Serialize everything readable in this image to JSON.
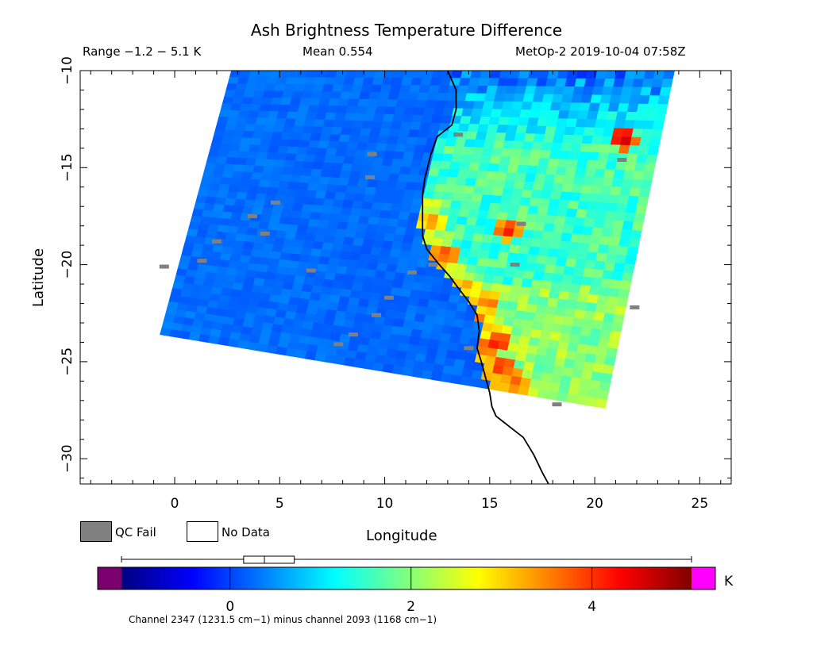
{
  "header": {
    "title": "Ash Brightness Temperature Difference",
    "range": "Range −1.2 − 5.1 K",
    "mean": "Mean 0.554",
    "source": "MetOp-2 2019-10-04 07:58Z"
  },
  "legend": {
    "qc_fail_label": "QC Fail",
    "no_data_label": "No Data",
    "qc_fail_color": "#808080",
    "no_data_color": "#ffffff"
  },
  "colorbar": {
    "unit": "K",
    "ticks": [
      0,
      2,
      4
    ],
    "tick_labels": [
      "0",
      "2",
      "4"
    ],
    "range": [
      -1.2,
      5.1
    ],
    "under_color": "#7a006e",
    "over_color": "#ff00ff",
    "box_stats": {
      "whisker_low": -1.2,
      "q1": 0.15,
      "median": 0.38,
      "q3": 0.71,
      "whisker_high": 5.1
    },
    "footnote": "Channel 2347 (1231.5 cm−1) minus channel 2093 (1168 cm−1)"
  },
  "chart_data": {
    "type": "heatmap",
    "title": "Ash Brightness Temperature Difference",
    "xlabel": "Longitude",
    "ylabel": "Latitude",
    "xlim": [
      -4.5,
      26.5
    ],
    "ylim": [
      -31.3,
      -10
    ],
    "x_ticks": [
      0,
      5,
      10,
      15,
      20,
      25
    ],
    "x_tick_labels": [
      "0",
      "5",
      "10",
      "15",
      "20",
      "25"
    ],
    "y_ticks": [
      -10,
      -15,
      -20,
      -25,
      -30
    ],
    "y_tick_labels": [
      "−10",
      "−15",
      "−20",
      "−25",
      "−30"
    ],
    "value_range_K": [
      -1.2,
      5.1
    ],
    "swath_corners": [
      [
        2.7,
        -10.0
      ],
      [
        23.8,
        -10.0
      ],
      [
        20.5,
        -27.4
      ],
      [
        -0.7,
        -23.6
      ]
    ],
    "coastline": [
      [
        13.0,
        -10.0
      ],
      [
        13.4,
        -11.0
      ],
      [
        13.4,
        -12.0
      ],
      [
        13.2,
        -12.8
      ],
      [
        12.5,
        -13.4
      ],
      [
        12.2,
        -14.3
      ],
      [
        11.9,
        -15.6
      ],
      [
        11.8,
        -16.4
      ],
      [
        11.8,
        -17.4
      ],
      [
        11.8,
        -18.5
      ],
      [
        12.0,
        -19.2
      ],
      [
        12.6,
        -20.0
      ],
      [
        13.1,
        -20.6
      ],
      [
        13.5,
        -21.2
      ],
      [
        14.0,
        -21.9
      ],
      [
        14.4,
        -22.6
      ],
      [
        14.5,
        -23.4
      ],
      [
        14.4,
        -24.3
      ],
      [
        14.6,
        -25.0
      ],
      [
        14.8,
        -25.8
      ],
      [
        15.0,
        -26.6
      ],
      [
        15.1,
        -27.3
      ],
      [
        15.3,
        -27.8
      ],
      [
        16.0,
        -28.4
      ],
      [
        16.6,
        -28.9
      ],
      [
        17.1,
        -29.8
      ],
      [
        17.5,
        -30.7
      ],
      [
        17.8,
        -31.3
      ]
    ],
    "hotspots": [
      {
        "lon": 15.4,
        "lat": -24.0,
        "value": 4.3
      },
      {
        "lon": 15.6,
        "lat": -25.3,
        "value": 4.0
      },
      {
        "lon": 16.2,
        "lat": -26.1,
        "value": 3.9
      },
      {
        "lon": 15.9,
        "lat": -18.2,
        "value": 4.1
      },
      {
        "lon": 12.2,
        "lat": -17.8,
        "value": 3.5
      },
      {
        "lon": 12.9,
        "lat": -19.5,
        "value": 3.9
      },
      {
        "lon": 14.9,
        "lat": -22.0,
        "value": 3.6
      },
      {
        "lon": 21.3,
        "lat": -13.5,
        "value": 4.6
      }
    ],
    "qc_fail_cells": [
      [
        -0.5,
        -20.1
      ],
      [
        1.3,
        -19.8
      ],
      [
        2.0,
        -18.8
      ],
      [
        4.3,
        -18.4
      ],
      [
        3.7,
        -17.5
      ],
      [
        4.8,
        -16.8
      ],
      [
        6.5,
        -20.3
      ],
      [
        7.8,
        -24.1
      ],
      [
        8.5,
        -23.6
      ],
      [
        9.6,
        -22.6
      ],
      [
        10.2,
        -21.7
      ],
      [
        11.3,
        -20.4
      ],
      [
        12.3,
        -20.0
      ],
      [
        14.0,
        -24.3
      ],
      [
        13.5,
        -13.3
      ],
      [
        9.3,
        -15.5
      ],
      [
        9.4,
        -14.3
      ],
      [
        18.2,
        -27.2
      ],
      [
        21.3,
        -14.6
      ],
      [
        21.9,
        -22.2
      ],
      [
        16.5,
        -17.9
      ],
      [
        16.2,
        -20.0
      ]
    ]
  }
}
